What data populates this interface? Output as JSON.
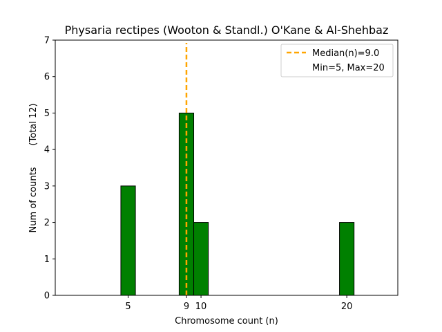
{
  "chart_data": {
    "type": "bar",
    "title": "Physaria rectipes (Wooton & Standl.) O'Kane & Al-Shehbaz",
    "xlabel": "Chromosome count (n)",
    "ylabel": "Num of counts",
    "ylabel_total": "(Total 12)",
    "x": [
      5,
      9,
      10,
      20
    ],
    "values": [
      3,
      5,
      2,
      2
    ],
    "xlim": [
      0,
      23.5
    ],
    "ylim": [
      0,
      7
    ],
    "xticks": [
      "5",
      "9",
      "10",
      "20"
    ],
    "yticks": [
      "0",
      "1",
      "2",
      "3",
      "4",
      "5",
      "6",
      "7"
    ],
    "median": 9.0,
    "legend": {
      "position": "top-right",
      "median_label": "Median(n)=9.0",
      "minmax_label": "Min=5, Max=20"
    },
    "colors": {
      "bar": "#008000",
      "bar_edge": "#000000",
      "median_line": "#FFA500"
    }
  }
}
